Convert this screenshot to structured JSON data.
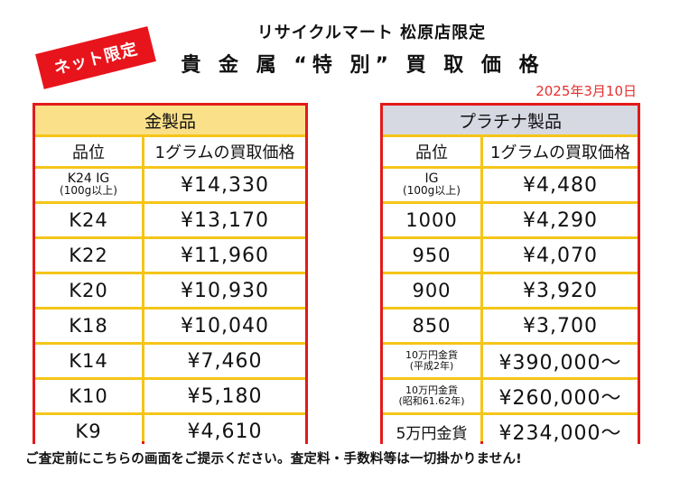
{
  "header": {
    "shop": "リサイクルマート 松原店限定",
    "title": "貴 金 属 “特 別” 買 取 価 格",
    "date": "2025年3月10日",
    "badge": "ネット限定"
  },
  "gold": {
    "caption": "金製品",
    "col_grade": "品位",
    "col_price": "1グラムの買取価格",
    "rows": [
      {
        "grade": "K24 IG",
        "grade_sub": "(100g以上)",
        "price": "¥14,330"
      },
      {
        "grade": "K24",
        "price": "¥13,170"
      },
      {
        "grade": "K22",
        "price": "¥11,960"
      },
      {
        "grade": "K20",
        "price": "¥10,930"
      },
      {
        "grade": "K18",
        "price": "¥10,040"
      },
      {
        "grade": "K14",
        "price": "¥7,460"
      },
      {
        "grade": "K10",
        "price": "¥5,180"
      },
      {
        "grade": "K9",
        "price": "¥4,610"
      }
    ]
  },
  "platinum": {
    "caption": "プラチナ製品",
    "col_grade": "品位",
    "col_price": "1グラムの買取価格",
    "rows": [
      {
        "grade": "IG",
        "grade_sub": "(100g以上)",
        "price": "¥4,480"
      },
      {
        "grade": "1000",
        "price": "¥4,290"
      },
      {
        "grade": "950",
        "price": "¥4,070"
      },
      {
        "grade": "900",
        "price": "¥3,920"
      },
      {
        "grade": "850",
        "price": "¥3,700"
      },
      {
        "grade": "10万円金貨",
        "grade_sub": "(平成2年)",
        "price": "¥390,000〜"
      },
      {
        "grade": "10万円金貨",
        "grade_sub": "(昭和61.62年)",
        "price": "¥260,000〜"
      },
      {
        "grade": "5万円金貨",
        "price": "¥234,000〜"
      }
    ]
  },
  "footer": "ご査定前にこちらの画面をご提示ください。査定料・手数料等は一切掛かりません!"
}
